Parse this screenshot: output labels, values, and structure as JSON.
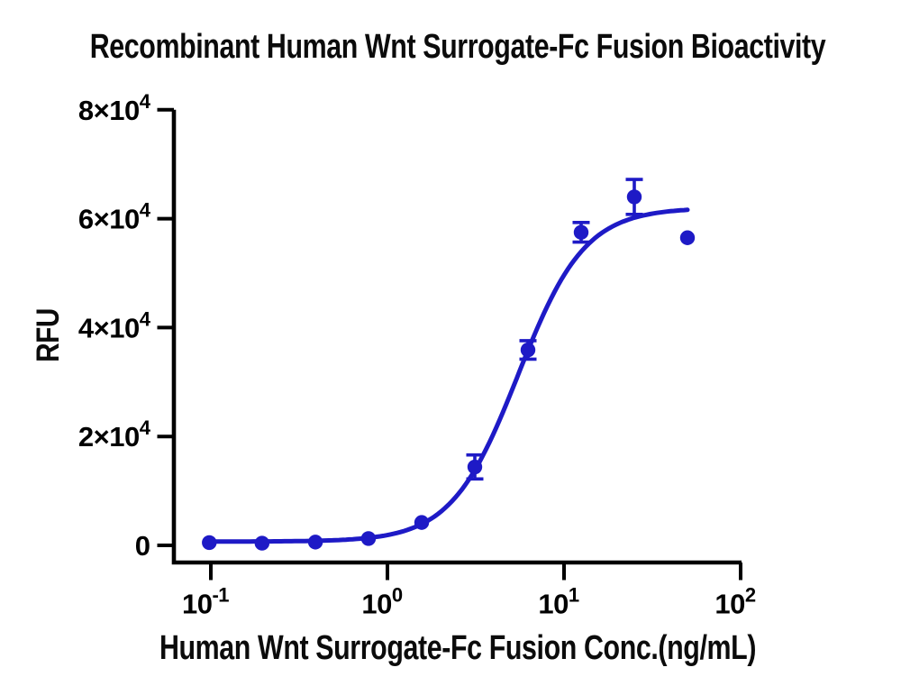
{
  "chart_data": {
    "type": "scatter",
    "title": "Recombinant Human Wnt Surrogate-Fc Fusion Bioactivity",
    "xlabel": "Human Wnt Surrogate-Fc Fusion Conc.(ng/mL)",
    "ylabel": "RFU",
    "x_scale": "log10",
    "xlim": [
      0.098,
      100
    ],
    "ylim": [
      0,
      80000
    ],
    "grid": false,
    "legend": "none",
    "axis_color": "#000000",
    "series_color": "#1e1ac6",
    "x_ticks": [
      {
        "v": 0.1,
        "label": "10^-1"
      },
      {
        "v": 1,
        "label": "10^0"
      },
      {
        "v": 10,
        "label": "10^1"
      },
      {
        "v": 100,
        "label": "10^2"
      }
    ],
    "y_ticks": [
      {
        "v": 0,
        "label": "0"
      },
      {
        "v": 20000,
        "label": "2×10^4"
      },
      {
        "v": 40000,
        "label": "4×10^4"
      },
      {
        "v": 60000,
        "label": "6×10^4"
      },
      {
        "v": 80000,
        "label": "8×10^4"
      }
    ],
    "x": [
      0.098,
      0.195,
      0.391,
      0.781,
      1.563,
      3.125,
      6.25,
      12.5,
      25,
      50
    ],
    "y": [
      500,
      400,
      600,
      1250,
      4200,
      14400,
      35900,
      57500,
      64000,
      56500
    ],
    "yerr": [
      0,
      0,
      0,
      0,
      0,
      2200,
      1700,
      1800,
      3200,
      0
    ],
    "fit": {
      "model": "4PL",
      "bottom": 700,
      "top": 62000,
      "ec50": 5.5,
      "hill": 2.3
    },
    "curve_range": [
      0.098,
      50
    ]
  }
}
